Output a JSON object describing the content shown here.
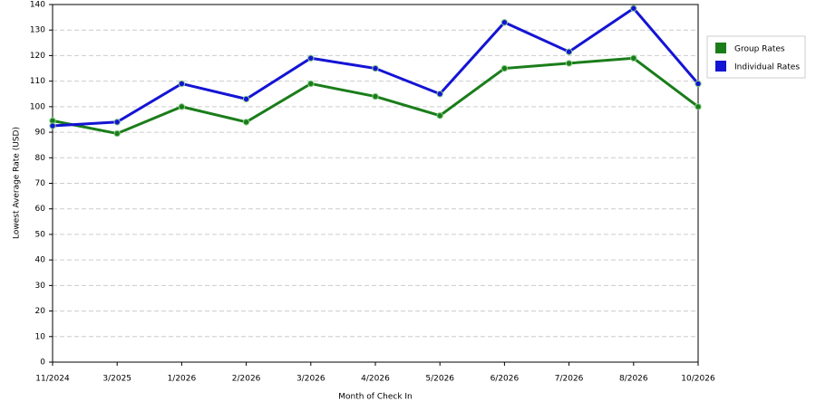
{
  "chart_data": {
    "type": "line",
    "x_label": "Month of Check In",
    "y_label": "Lowest Average Rate (USD)",
    "categories": [
      "11/2024",
      "3/2025",
      "1/2026",
      "2/2026",
      "3/2026",
      "4/2026",
      "5/2026",
      "6/2026",
      "7/2026",
      "8/2026",
      "10/2026"
    ],
    "series": [
      {
        "name": "Group Rates",
        "color": "#1a7d1a",
        "values": [
          94.5,
          89.5,
          100,
          94,
          109,
          104,
          96.5,
          115,
          117,
          119,
          100
        ]
      },
      {
        "name": "Individual Rates",
        "color": "#1414d4",
        "values": [
          92.5,
          94,
          109,
          103,
          119,
          115,
          105,
          133,
          121.5,
          138.5,
          109
        ]
      }
    ],
    "ylim": [
      0,
      140
    ],
    "yticks": [
      0,
      10,
      20,
      30,
      40,
      50,
      60,
      70,
      80,
      90,
      100,
      110,
      120,
      130,
      140
    ],
    "grid": true,
    "legend": "right"
  }
}
